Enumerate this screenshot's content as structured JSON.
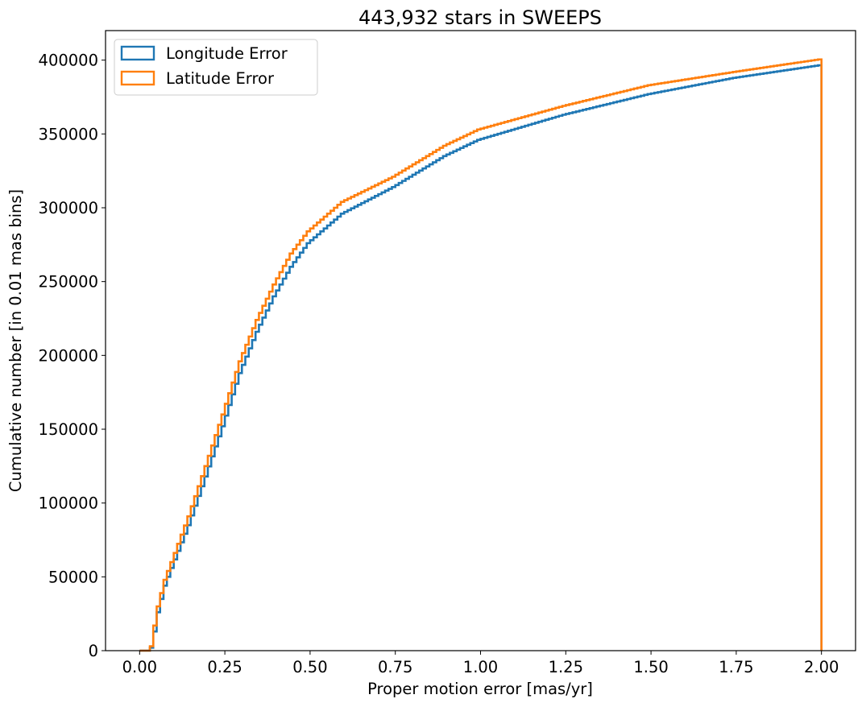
{
  "chart_data": {
    "type": "step-histogram-cumulative",
    "title": "443,932 stars in SWEEPS",
    "xlabel": "Proper motion error [mas/yr]",
    "ylabel": "Cumulative number [in 0.01 mas bins]",
    "xlim": [
      -0.1,
      2.1
    ],
    "ylim": [
      0,
      420000
    ],
    "xticks": [
      0.0,
      0.25,
      0.5,
      0.75,
      1.0,
      1.25,
      1.5,
      1.75,
      2.0
    ],
    "xtick_labels": [
      "0.00",
      "0.25",
      "0.50",
      "0.75",
      "1.00",
      "1.25",
      "1.50",
      "1.75",
      "2.00"
    ],
    "yticks": [
      0,
      50000,
      100000,
      150000,
      200000,
      250000,
      300000,
      350000,
      400000
    ],
    "ytick_labels": [
      "0",
      "50000",
      "100000",
      "150000",
      "200000",
      "250000",
      "300000",
      "350000",
      "400000"
    ],
    "grid": false,
    "legend_position": "upper left",
    "bin_width": 0.01,
    "series": [
      {
        "name": "Longitude Error",
        "color": "#1f77b4",
        "x": [
          0.0,
          0.03,
          0.04,
          0.05,
          0.06,
          0.08,
          0.1,
          0.15,
          0.2,
          0.25,
          0.3,
          0.35,
          0.4,
          0.45,
          0.5,
          0.6,
          0.75,
          0.9,
          1.0,
          1.25,
          1.5,
          1.75,
          2.0
        ],
        "values": [
          0,
          0,
          2000,
          13000,
          26000,
          44000,
          56000,
          85000,
          118000,
          152000,
          188000,
          216000,
          240000,
          260000,
          276000,
          296000,
          314000,
          335000,
          346000,
          363000,
          377000,
          388000,
          396500
        ]
      },
      {
        "name": "Latitude Error",
        "color": "#ff7f0e",
        "x": [
          0.0,
          0.03,
          0.04,
          0.05,
          0.06,
          0.08,
          0.1,
          0.15,
          0.2,
          0.25,
          0.3,
          0.35,
          0.4,
          0.45,
          0.5,
          0.6,
          0.75,
          0.9,
          1.0,
          1.25,
          1.5,
          1.75,
          2.0
        ],
        "values": [
          0,
          0,
          3000,
          17000,
          30000,
          48000,
          60000,
          91000,
          125000,
          160000,
          196000,
          224000,
          248000,
          269000,
          284000,
          304000,
          321000,
          342000,
          353000,
          369000,
          383000,
          392000,
          400500
        ]
      }
    ]
  }
}
